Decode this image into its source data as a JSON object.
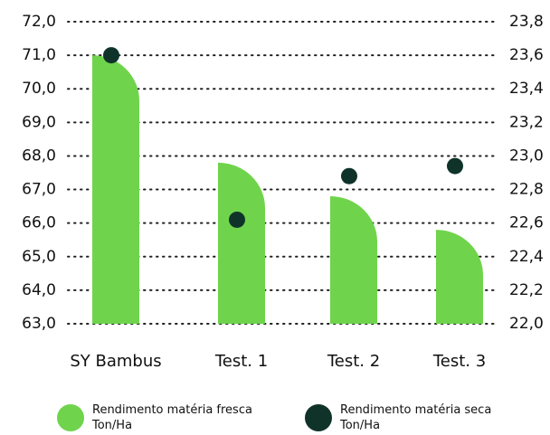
{
  "chart_data": {
    "type": "bar",
    "categories": [
      "SY Bambus",
      "Test. 1",
      "Test. 2",
      "Test. 3"
    ],
    "series": [
      {
        "name": "Rendimento matéria fresca\nTon/Ha",
        "color": "#6fd44c",
        "values": [
          71.0,
          67.8,
          66.8,
          65.8
        ]
      },
      {
        "name": "Rendimento matéria seca\nTon/Ha",
        "color": "#0f3328",
        "axis": "y2",
        "type": "scatter",
        "values": [
          23.6,
          22.62,
          22.88,
          22.94
        ]
      }
    ],
    "ylim": [
      63,
      72
    ],
    "yticks": [
      {
        "value": 63,
        "label": "63,0"
      },
      {
        "value": 64,
        "label": "64,0"
      },
      {
        "value": 65,
        "label": "65,0"
      },
      {
        "value": 66,
        "label": "66,0"
      },
      {
        "value": 67,
        "label": "67,0"
      },
      {
        "value": 68,
        "label": "68,0"
      },
      {
        "value": 69,
        "label": "69,0"
      },
      {
        "value": 70,
        "label": "70,0"
      },
      {
        "value": 71,
        "label": "71,0"
      },
      {
        "value": 72,
        "label": "72,0"
      }
    ],
    "y2lim": [
      22.0,
      23.8
    ],
    "y2ticks": [
      {
        "value": 22.0,
        "label": "22,0"
      },
      {
        "value": 22.2,
        "label": "22,2"
      },
      {
        "value": 22.4,
        "label": "22,4"
      },
      {
        "value": 22.6,
        "label": "22,6"
      },
      {
        "value": 22.8,
        "label": "22,8"
      },
      {
        "value": 23.0,
        "label": "23,0"
      },
      {
        "value": 23.2,
        "label": "23,2"
      },
      {
        "value": 23.4,
        "label": "23,4"
      },
      {
        "value": 23.6,
        "label": "23,6"
      },
      {
        "value": 23.8,
        "label": "23,8"
      }
    ],
    "grid": true
  }
}
